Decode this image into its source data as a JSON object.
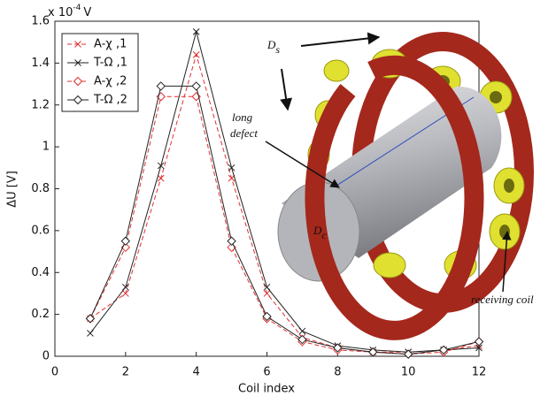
{
  "chart_data": {
    "type": "line",
    "x_label": "Coil index",
    "y_label": "ΔU [V]",
    "exponent_label": {
      "base": "x 10",
      "power": "-4",
      "unit": "V"
    },
    "x": [
      1,
      2,
      3,
      4,
      5,
      6,
      7,
      8,
      9,
      10,
      11,
      12
    ],
    "xlim": [
      0,
      12
    ],
    "xticks": [
      0,
      2,
      4,
      6,
      8,
      10,
      12
    ],
    "ylim": [
      0,
      1.6
    ],
    "yticks": [
      0,
      0.2,
      0.4,
      0.6,
      0.8,
      1,
      1.2,
      1.4,
      1.6
    ],
    "legend": "upper left",
    "series": [
      {
        "name": "A-χ ,1",
        "color": "#e03030",
        "marker": "x",
        "dashed": true,
        "values": [
          0.18,
          0.3,
          0.85,
          1.44,
          0.85,
          0.3,
          0.09,
          0.04,
          0.02,
          0.02,
          0.03,
          0.05
        ]
      },
      {
        "name": "T-Ω ,1",
        "color": "#222222",
        "marker": "x",
        "dashed": false,
        "values": [
          0.11,
          0.33,
          0.91,
          1.55,
          0.9,
          0.33,
          0.12,
          0.05,
          0.03,
          0.02,
          0.03,
          0.04
        ]
      },
      {
        "name": "A-χ ,2",
        "color": "#e03030",
        "marker": "diamond",
        "dashed": true,
        "values": [
          0.18,
          0.52,
          1.24,
          1.24,
          0.52,
          0.18,
          0.07,
          0.03,
          0.02,
          0.01,
          0.02,
          0.07
        ]
      },
      {
        "name": "T-Ω ,2",
        "color": "#222222",
        "marker": "diamond",
        "dashed": false,
        "values": [
          0.18,
          0.55,
          1.29,
          1.29,
          0.55,
          0.19,
          0.08,
          0.04,
          0.02,
          0.01,
          0.03,
          0.07
        ]
      }
    ]
  },
  "illustration": {
    "ds": {
      "main": "D",
      "sub": "s"
    },
    "dc": {
      "main": "D",
      "sub": "c"
    },
    "defect": [
      "long",
      "defect"
    ],
    "coil": "receiving coil"
  }
}
